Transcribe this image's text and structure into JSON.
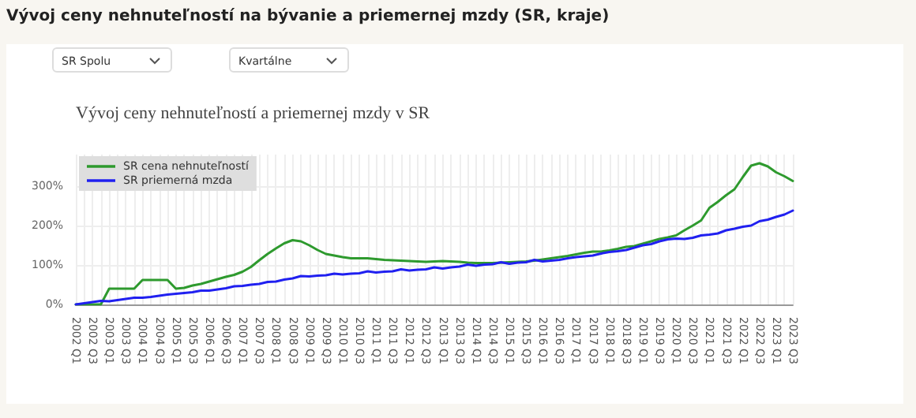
{
  "chart_data": {
    "type": "line",
    "title": "Vývoj ceny nehnuteľností na bývanie a priemernej mzdy (SR, kraje)",
    "subtitle": "Vývoj ceny nehnuteľností a priemernej mzdy v SR",
    "annotations": [
      "SR Spolu",
      "Kvartálne"
    ],
    "categories": [
      "2002 Q1",
      null,
      "2002 Q3",
      null,
      "2003 Q1",
      null,
      "2003 Q3",
      null,
      "2004 Q1",
      null,
      "2004 Q3",
      null,
      "2005 Q1",
      null,
      "2005 Q3",
      null,
      "2006 Q1",
      null,
      "2006 Q3",
      null,
      "2007 Q1",
      null,
      "2007 Q3",
      null,
      "2008 Q1",
      null,
      "2008 Q3",
      null,
      "2009 Q1",
      null,
      "2009 Q3",
      null,
      "2010 Q1",
      null,
      "2010 Q3",
      null,
      "2011 Q1",
      null,
      "2011 Q3",
      null,
      "2012 Q1",
      null,
      "2012 Q3",
      null,
      "2013 Q1",
      null,
      "2013 Q3",
      null,
      "2014 Q1",
      null,
      "2014 Q3",
      null,
      "2015 Q1",
      null,
      "2015 Q3",
      null,
      "2016 Q1",
      null,
      "2016 Q3",
      null,
      "2017 Q1",
      null,
      "2017 Q3",
      null,
      "2018 Q1",
      null,
      "2018 Q3",
      null,
      "2019 Q1",
      null,
      "2019 Q3",
      null,
      "2020 Q1",
      null,
      "2020 Q3",
      null,
      "2021 Q1",
      null,
      "2021 Q3",
      null,
      "2022 Q1",
      null,
      "2022 Q3",
      null,
      "2023 Q1",
      null,
      "2023 Q3"
    ],
    "series": [
      {
        "name": "SR cena nehnuteľností",
        "color": "#2e9a2e",
        "values": [
          0,
          0,
          0,
          0,
          40,
          40,
          40,
          40,
          62,
          62,
          62,
          62,
          40,
          42,
          48,
          52,
          58,
          64,
          70,
          75,
          83,
          95,
          112,
          128,
          142,
          155,
          163,
          160,
          150,
          138,
          128,
          124,
          120,
          117,
          117,
          117,
          115,
          113,
          112,
          111,
          110,
          109,
          108,
          109,
          110,
          109,
          108,
          106,
          105,
          105,
          105,
          106,
          107,
          108,
          109,
          111,
          114,
          117,
          120,
          123,
          127,
          131,
          134,
          134,
          137,
          141,
          146,
          148,
          154,
          160,
          166,
          170,
          175,
          188,
          200,
          213,
          245,
          260,
          277,
          292,
          323,
          352,
          358,
          350,
          335,
          325,
          313
        ]
      },
      {
        "name": "SR priemerná mzda",
        "color": "#2020f0",
        "values": [
          0,
          3,
          6,
          9,
          8,
          11,
          14,
          17,
          17,
          19,
          22,
          25,
          27,
          29,
          31,
          35,
          35,
          38,
          41,
          46,
          47,
          50,
          52,
          57,
          58,
          63,
          66,
          72,
          71,
          73,
          74,
          78,
          76,
          78,
          79,
          84,
          81,
          83,
          84,
          89,
          86,
          88,
          89,
          94,
          91,
          94,
          96,
          101,
          98,
          101,
          102,
          107,
          103,
          106,
          107,
          113,
          109,
          111,
          113,
          117,
          120,
          122,
          124,
          129,
          133,
          135,
          138,
          144,
          150,
          153,
          160,
          165,
          167,
          166,
          169,
          175,
          177,
          180,
          188,
          192,
          197,
          200,
          211,
          215,
          222,
          228,
          238
        ]
      }
    ],
    "ylim": [
      0,
      380
    ],
    "yticks": [
      {
        "value": 0,
        "label": "0%"
      },
      {
        "value": 100,
        "label": "100%"
      },
      {
        "value": 200,
        "label": "200%"
      },
      {
        "value": 300,
        "label": "300%"
      }
    ],
    "grid": true,
    "legend": "top left",
    "marker": "none",
    "line_style": "solid"
  }
}
